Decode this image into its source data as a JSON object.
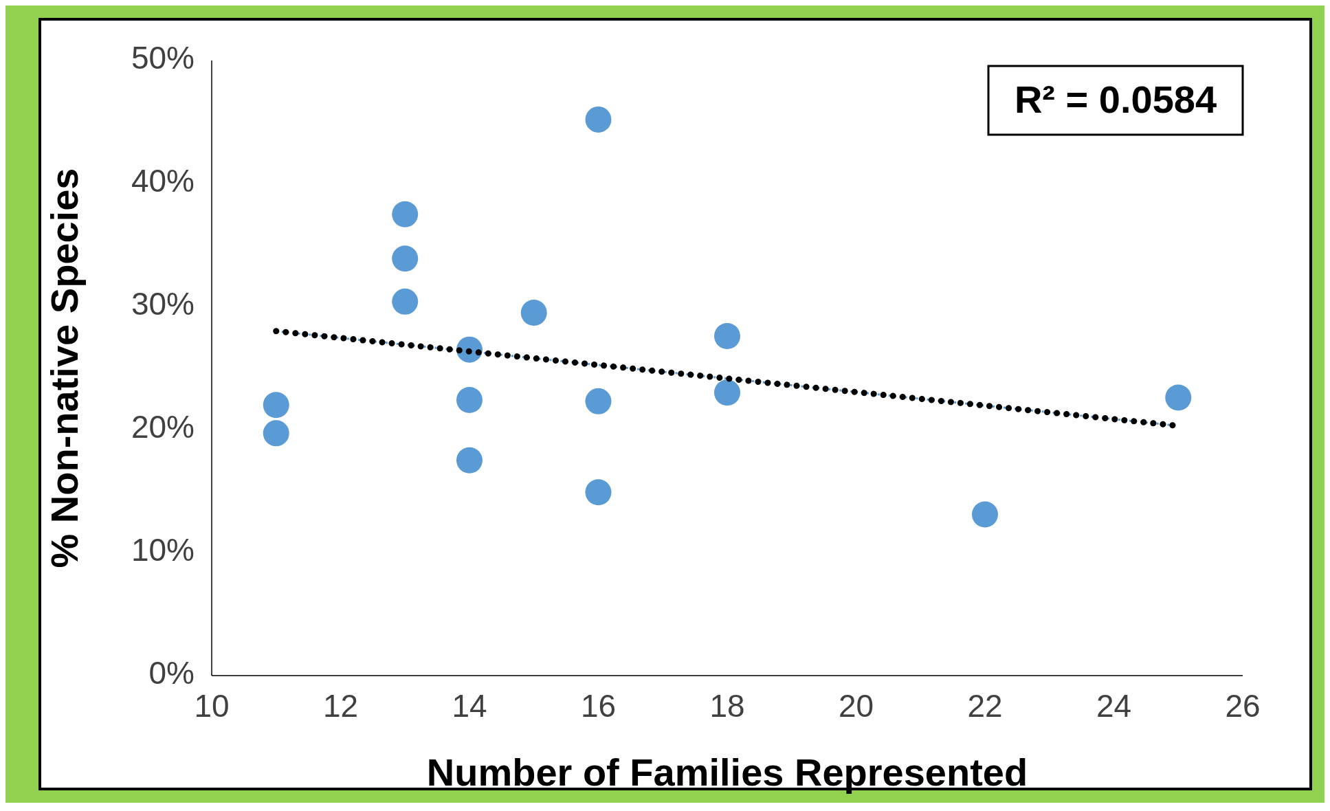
{
  "chart_data": {
    "type": "scatter",
    "xlabel": "Number of Families Represented",
    "ylabel": "% Non-native Species",
    "xlim": [
      10,
      26
    ],
    "xticks": [
      10,
      12,
      14,
      16,
      18,
      20,
      22,
      24,
      26
    ],
    "ylim": [
      0,
      50
    ],
    "yticks": [
      {
        "value": 0,
        "label": "0%"
      },
      {
        "value": 10,
        "label": "10%"
      },
      {
        "value": 20,
        "label": "20%"
      },
      {
        "value": 30,
        "label": "30%"
      },
      {
        "value": 40,
        "label": "40%"
      },
      {
        "value": 50,
        "label": "50%"
      }
    ],
    "grid": false,
    "marker": "circle",
    "annotations": [
      "R² = 0.0584"
    ],
    "series": [
      {
        "color": "#5b9bd5",
        "x": [
          11,
          11,
          13,
          13,
          13,
          14,
          14,
          14,
          15,
          16,
          16,
          16,
          18,
          18,
          22,
          25
        ],
        "values": [
          22.0,
          19.7,
          37.5,
          33.9,
          30.4,
          26.5,
          22.4,
          17.5,
          29.5,
          45.2,
          22.3,
          14.9,
          27.6,
          23.0,
          13.1,
          22.6
        ]
      },
      {
        "type": "line",
        "color": "#000000",
        "line_style": "dotted",
        "marker": "none",
        "x": [
          11,
          25
        ],
        "values": [
          28.0,
          20.3
        ]
      }
    ]
  }
}
